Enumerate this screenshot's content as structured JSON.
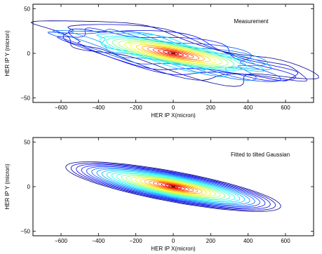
{
  "figure": {
    "description_free": true
  },
  "chart_data": [
    {
      "type": "contour",
      "annotation": "Measurement",
      "xlabel": "HER IP X(micron)",
      "ylabel": "HER IP Y (micron)",
      "xlim": [
        -750,
        750
      ],
      "ylim": [
        -55,
        55
      ],
      "xticks": [
        -600,
        -400,
        -200,
        0,
        200,
        400,
        600
      ],
      "xtick_labels": [
        "−600",
        "−400",
        "−200",
        "0",
        "200",
        "400",
        "600"
      ],
      "yticks": [
        -50,
        0,
        50
      ],
      "ytick_labels": [
        "−50",
        "0",
        "50"
      ],
      "beam": {
        "center_x": 0,
        "center_y": 0,
        "sigma_x": 200,
        "sigma_y": 6,
        "tilt_slope": -0.038
      },
      "contour_levels": 22,
      "outer_extent_x": [
        -650,
        680
      ],
      "colors": [
        "#00008f",
        "#0000ff",
        "#0080ff",
        "#00ffff",
        "#80ff80",
        "#ffff00",
        "#ff8000",
        "#ff0000",
        "#800000"
      ]
    },
    {
      "type": "contour",
      "annotation": "Fitted to tilted Gaussian",
      "xlabel": "HER IP X(micron)",
      "ylabel": "HER IP Y (micron)",
      "xlim": [
        -750,
        750
      ],
      "ylim": [
        -55,
        55
      ],
      "xticks": [
        -600,
        -400,
        -200,
        0,
        200,
        400,
        600
      ],
      "xtick_labels": [
        "−600",
        "−400",
        "−200",
        "0",
        "200",
        "400",
        "600"
      ],
      "yticks": [
        -50,
        0,
        50
      ],
      "ytick_labels": [
        "−50",
        "0",
        "50"
      ],
      "beam": {
        "center_x": 0,
        "center_y": 0,
        "sigma_x": 200,
        "sigma_y": 6,
        "tilt_slope": -0.038
      },
      "contour_levels": 24,
      "outer_extent_x": [
        -550,
        580
      ],
      "colors": [
        "#00008f",
        "#0000ff",
        "#0080ff",
        "#00ffff",
        "#80ff80",
        "#ffff00",
        "#ff8000",
        "#ff0000",
        "#800000"
      ]
    }
  ]
}
